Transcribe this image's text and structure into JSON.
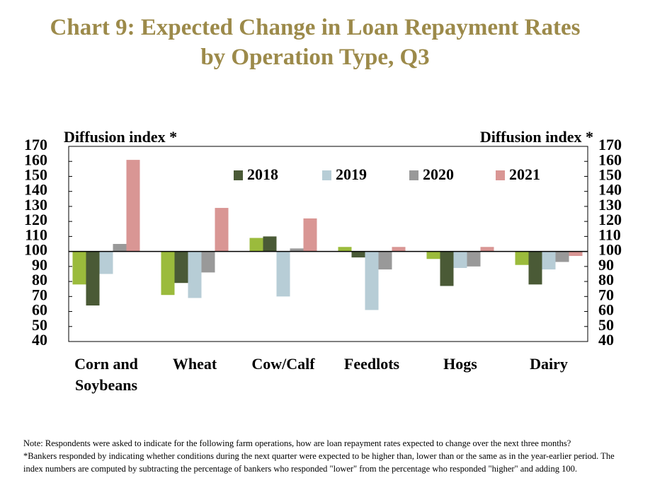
{
  "chart_data": {
    "type": "bar",
    "title": [
      "Chart 9: Expected Change in Loan Repayment Rates",
      "by Operation Type, Q3"
    ],
    "y_label": "Diffusion index *",
    "y2_label": "Diffusion index *",
    "categories": [
      "Corn and Soybeans",
      "Wheat",
      "Cow/Calf",
      "Feedlots",
      "Hogs",
      "Dairy"
    ],
    "series": [
      {
        "color": "#9bbb3c",
        "values": [
          78,
          71,
          109,
          103,
          95,
          91
        ]
      },
      {
        "name": "2018",
        "color": "#4a5a36",
        "values": [
          64,
          79,
          110,
          96,
          77,
          78
        ]
      },
      {
        "name": "2019",
        "color": "#b7cdd6",
        "values": [
          85,
          69,
          70,
          61,
          89,
          88
        ]
      },
      {
        "name": "2020",
        "color": "#999999",
        "values": [
          105,
          86,
          102,
          88,
          90,
          93
        ]
      },
      {
        "name": "2021",
        "color": "#d99694",
        "values": [
          161,
          129,
          122,
          103,
          103,
          97
        ]
      }
    ],
    "baseline": 100,
    "ylim": [
      40,
      170
    ],
    "yticks": [
      40,
      50,
      60,
      70,
      80,
      90,
      100,
      110,
      120,
      130,
      140,
      150,
      160,
      170
    ],
    "y2lim": [
      40,
      170
    ],
    "y2ticks": [
      40,
      50,
      60,
      70,
      80,
      90,
      100,
      110,
      120,
      130,
      140,
      150,
      160,
      170
    ],
    "notes": [
      "Note: Respondents were asked to indicate for the following farm operations, how are loan repayment rates expected to change over the next three months?",
      "*Bankers responded by indicating whether conditions during the next quarter were expected to be higher than, lower than or the same as in the year-earlier period. The index numbers are computed by subtracting the percentage of bankers who responded \"lower\" from the percentage who responded \"higher\" and adding 100."
    ]
  }
}
